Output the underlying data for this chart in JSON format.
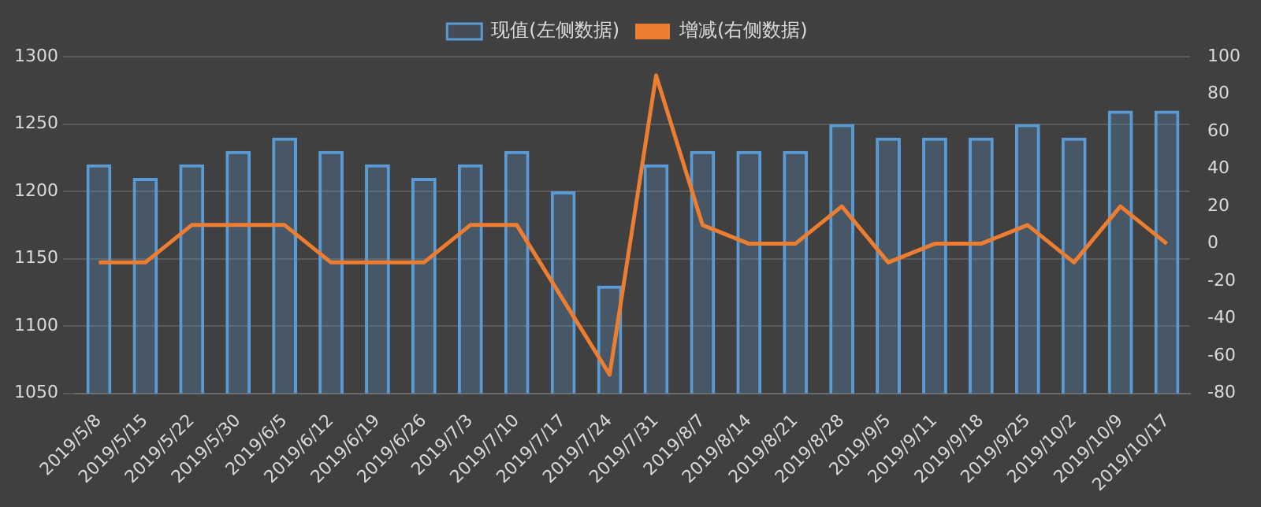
{
  "chart_data": {
    "type": "bar",
    "categories": [
      "2019/5/8",
      "2019/5/15",
      "2019/5/22",
      "2019/5/30",
      "2019/6/5",
      "2019/6/12",
      "2019/6/19",
      "2019/6/26",
      "2019/7/3",
      "2019/7/10",
      "2019/7/17",
      "2019/7/24",
      "2019/7/31",
      "2019/8/7",
      "2019/8/14",
      "2019/8/21",
      "2019/8/28",
      "2019/9/5",
      "2019/9/11",
      "2019/9/18",
      "2019/9/25",
      "2019/10/2",
      "2019/10/9",
      "2019/10/17"
    ],
    "series": [
      {
        "name": "现值(左侧数据)",
        "type": "bar",
        "color": "#5b9bd5",
        "values": [
          1220,
          1210,
          1220,
          1230,
          1240,
          1230,
          1220,
          1210,
          1220,
          1230,
          1200,
          1130,
          1220,
          1230,
          1230,
          1230,
          1250,
          1240,
          1240,
          1240,
          1250,
          1240,
          1260,
          1260
        ]
      },
      {
        "name": "增减(右侧数据)",
        "type": "line",
        "axis": "y2",
        "color": "#ed7d31",
        "values": [
          -10,
          -10,
          10,
          10,
          10,
          -10,
          -10,
          -10,
          10,
          10,
          -30,
          -70,
          90,
          10,
          0,
          0,
          20,
          -10,
          0,
          0,
          10,
          -10,
          20,
          0
        ]
      }
    ],
    "ylim": [
      1050,
      1300
    ],
    "yticks": [
      1050,
      1100,
      1150,
      1200,
      1250,
      1300
    ],
    "y2lim": [
      -80,
      100
    ],
    "y2ticks": [
      -80,
      -60,
      -40,
      -20,
      0,
      20,
      40,
      60,
      80,
      100
    ],
    "grid": "y",
    "legend": "top",
    "marker": "none",
    "line_style": "solid"
  }
}
